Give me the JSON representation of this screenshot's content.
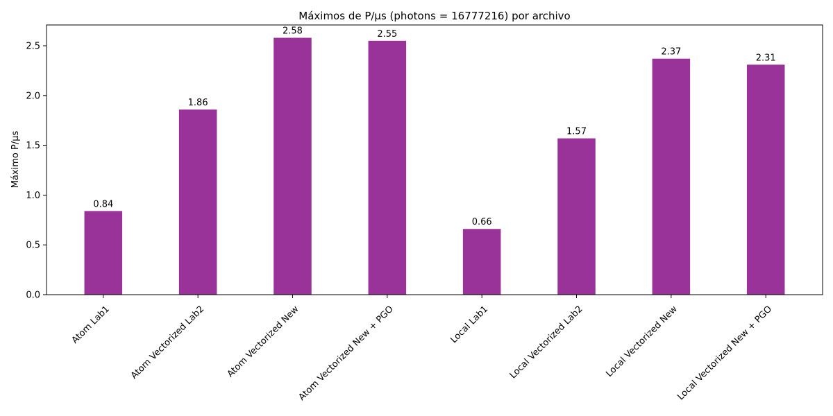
{
  "chart_data": {
    "type": "bar",
    "title": "Máximos de P/µs (photons = 16777216) por archivo",
    "xlabel": "",
    "ylabel": "Máximo P/µs",
    "ylim": [
      0,
      2.709
    ],
    "yticks": [
      0.0,
      0.5,
      1.0,
      1.5,
      2.0,
      2.5
    ],
    "ytick_labels": [
      "0.0",
      "0.5",
      "1.0",
      "1.5",
      "2.0",
      "2.5"
    ],
    "grid": false,
    "bar_color": "#993399",
    "categories": [
      "Atom Lab1",
      "Atom Vectorized Lab2",
      "Atom Vectorized New",
      "Atom Vectorized New + PGO",
      "Local Lab1",
      "Local Vectorized Lab2",
      "Local Vectorized New",
      "Local Vectorized New + PGO"
    ],
    "values": [
      0.84,
      1.86,
      2.58,
      2.55,
      0.66,
      1.57,
      2.37,
      2.31
    ],
    "data_labels": [
      "0.84",
      "1.86",
      "2.58",
      "2.55",
      "0.66",
      "1.57",
      "2.37",
      "2.31"
    ]
  }
}
